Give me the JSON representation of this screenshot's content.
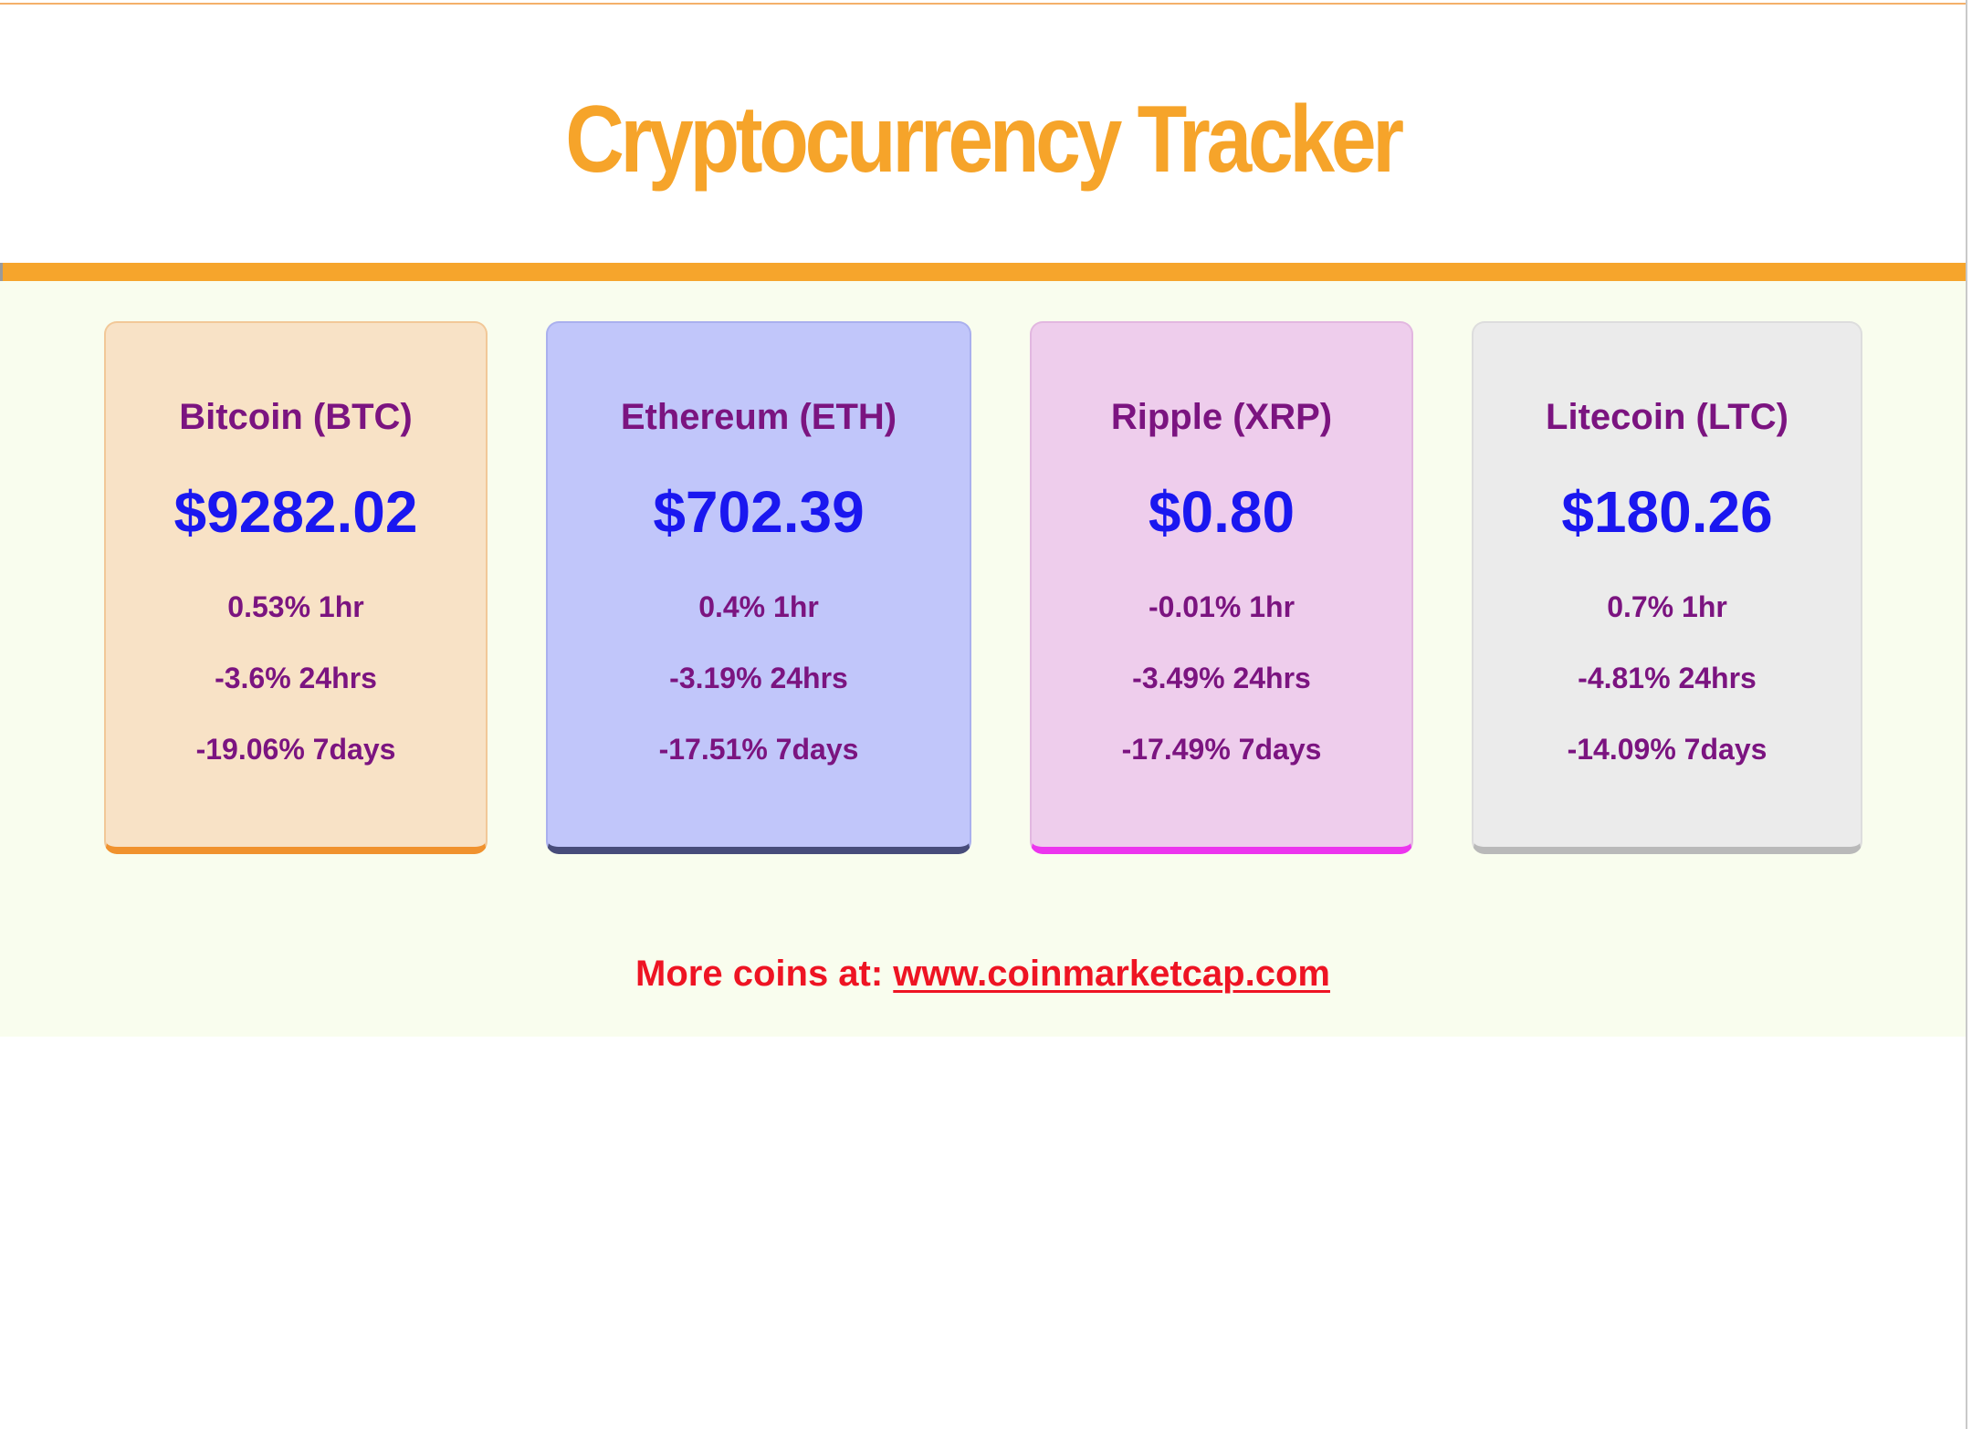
{
  "header": {
    "title": "Cryptocurrency Tracker"
  },
  "colors": {
    "title": "#f6a42a",
    "header_bar": "#f6a52c",
    "coin_name": "#7b1480",
    "price": "#1a17f0",
    "footer_text": "#ee1423",
    "content_background": "#f9fdee"
  },
  "coins": [
    {
      "name": "Bitcoin (BTC)",
      "price": "$9282.02",
      "change_1h": "0.53% 1hr",
      "change_24h": "-3.6% 24hrs",
      "change_7d": "-19.06% 7days",
      "card_color": "#f8e2c6",
      "accent_color": "#f0922e"
    },
    {
      "name": "Ethereum (ETH)",
      "price": "$702.39",
      "change_1h": "0.4% 1hr",
      "change_24h": "-3.19% 24hrs",
      "change_7d": "-17.51% 7days",
      "card_color": "#c1c6fa",
      "accent_color": "#474c7a"
    },
    {
      "name": "Ripple (XRP)",
      "price": "$0.80",
      "change_1h": "-0.01% 1hr",
      "change_24h": "-3.49% 24hrs",
      "change_7d": "-17.49% 7days",
      "card_color": "#eecdec",
      "accent_color": "#ec35ee"
    },
    {
      "name": "Litecoin (LTC)",
      "price": "$180.26",
      "change_1h": "0.7% 1hr",
      "change_24h": "-4.81% 24hrs",
      "change_7d": "-14.09% 7days",
      "card_color": "#ebebeb",
      "accent_color": "#b9b9b9"
    }
  ],
  "footer": {
    "prefix": "More coins at: ",
    "link_text": "www.coinmarketcap.com"
  }
}
